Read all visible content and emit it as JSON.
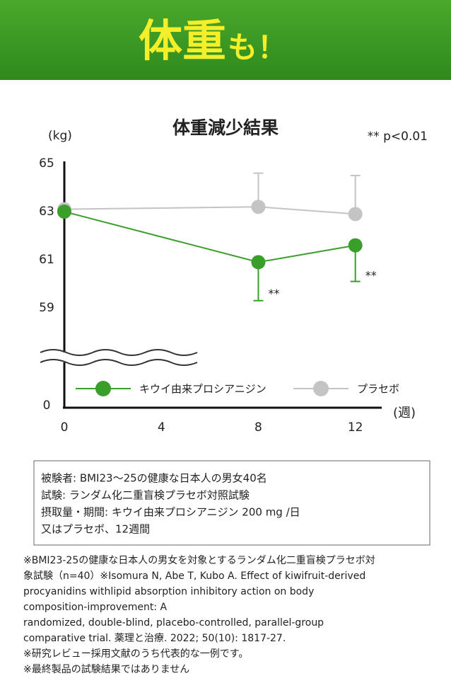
{
  "header": {
    "title_main": "体重",
    "title_sub": "も！"
  },
  "chart_data": {
    "type": "line",
    "title": "体重減少結果",
    "ylabel": "(kg)",
    "xlabel": "(週)",
    "note": "** p<0.01",
    "x": [
      0,
      8,
      12
    ],
    "xlim": [
      0,
      13
    ],
    "xticks": [
      0,
      4,
      8,
      12
    ],
    "ylim": [
      0,
      65
    ],
    "yticks": [
      0,
      59,
      61,
      63,
      65
    ],
    "axis_break": true,
    "series": [
      {
        "name": "キウイ由来プロシアニジン",
        "color": "#3a9e2a",
        "values": [
          63,
          60.9,
          61.6
        ],
        "errors": [
          null,
          1.6,
          1.5
        ],
        "error_direction": "down"
      },
      {
        "name": "プラセボ",
        "color": "#c4c4c4",
        "values": [
          63.1,
          63.2,
          62.9
        ],
        "errors": [
          null,
          1.4,
          1.6
        ],
        "error_direction": "up"
      }
    ],
    "annotations": [
      {
        "x": 8,
        "text": "**"
      },
      {
        "x": 12,
        "text": "**"
      }
    ]
  },
  "info_box": [
    "被験者: BMI23〜25の健康な日本人の男女40名",
    "試験: ランダム化二重盲検プラセボ対照試験",
    "摂取量・期間: キウイ由来プロシアニジン 200 mg /日",
    "又はプラセボ、12週間"
  ],
  "footnotes": [
    "※BMI23-25の健康な日本人の男女を対象とするランダム化二重盲検プラセボ対",
    "象試験（n=40）※Isomura N, Abe T, Kubo A. Effect of kiwifruit-derived",
    "procyanidins withlipid absorption inhibitory action on body",
    "composition-improvement: A",
    "randomized, double-blind, placebo-controlled, parallel-group",
    "comparative trial. 薬理と治療. 2022; 50(10): 1817-27.",
    "※研究レビュー採用文献のうち代表的な一例です。",
    "※最終製品の試験結果ではありません"
  ]
}
